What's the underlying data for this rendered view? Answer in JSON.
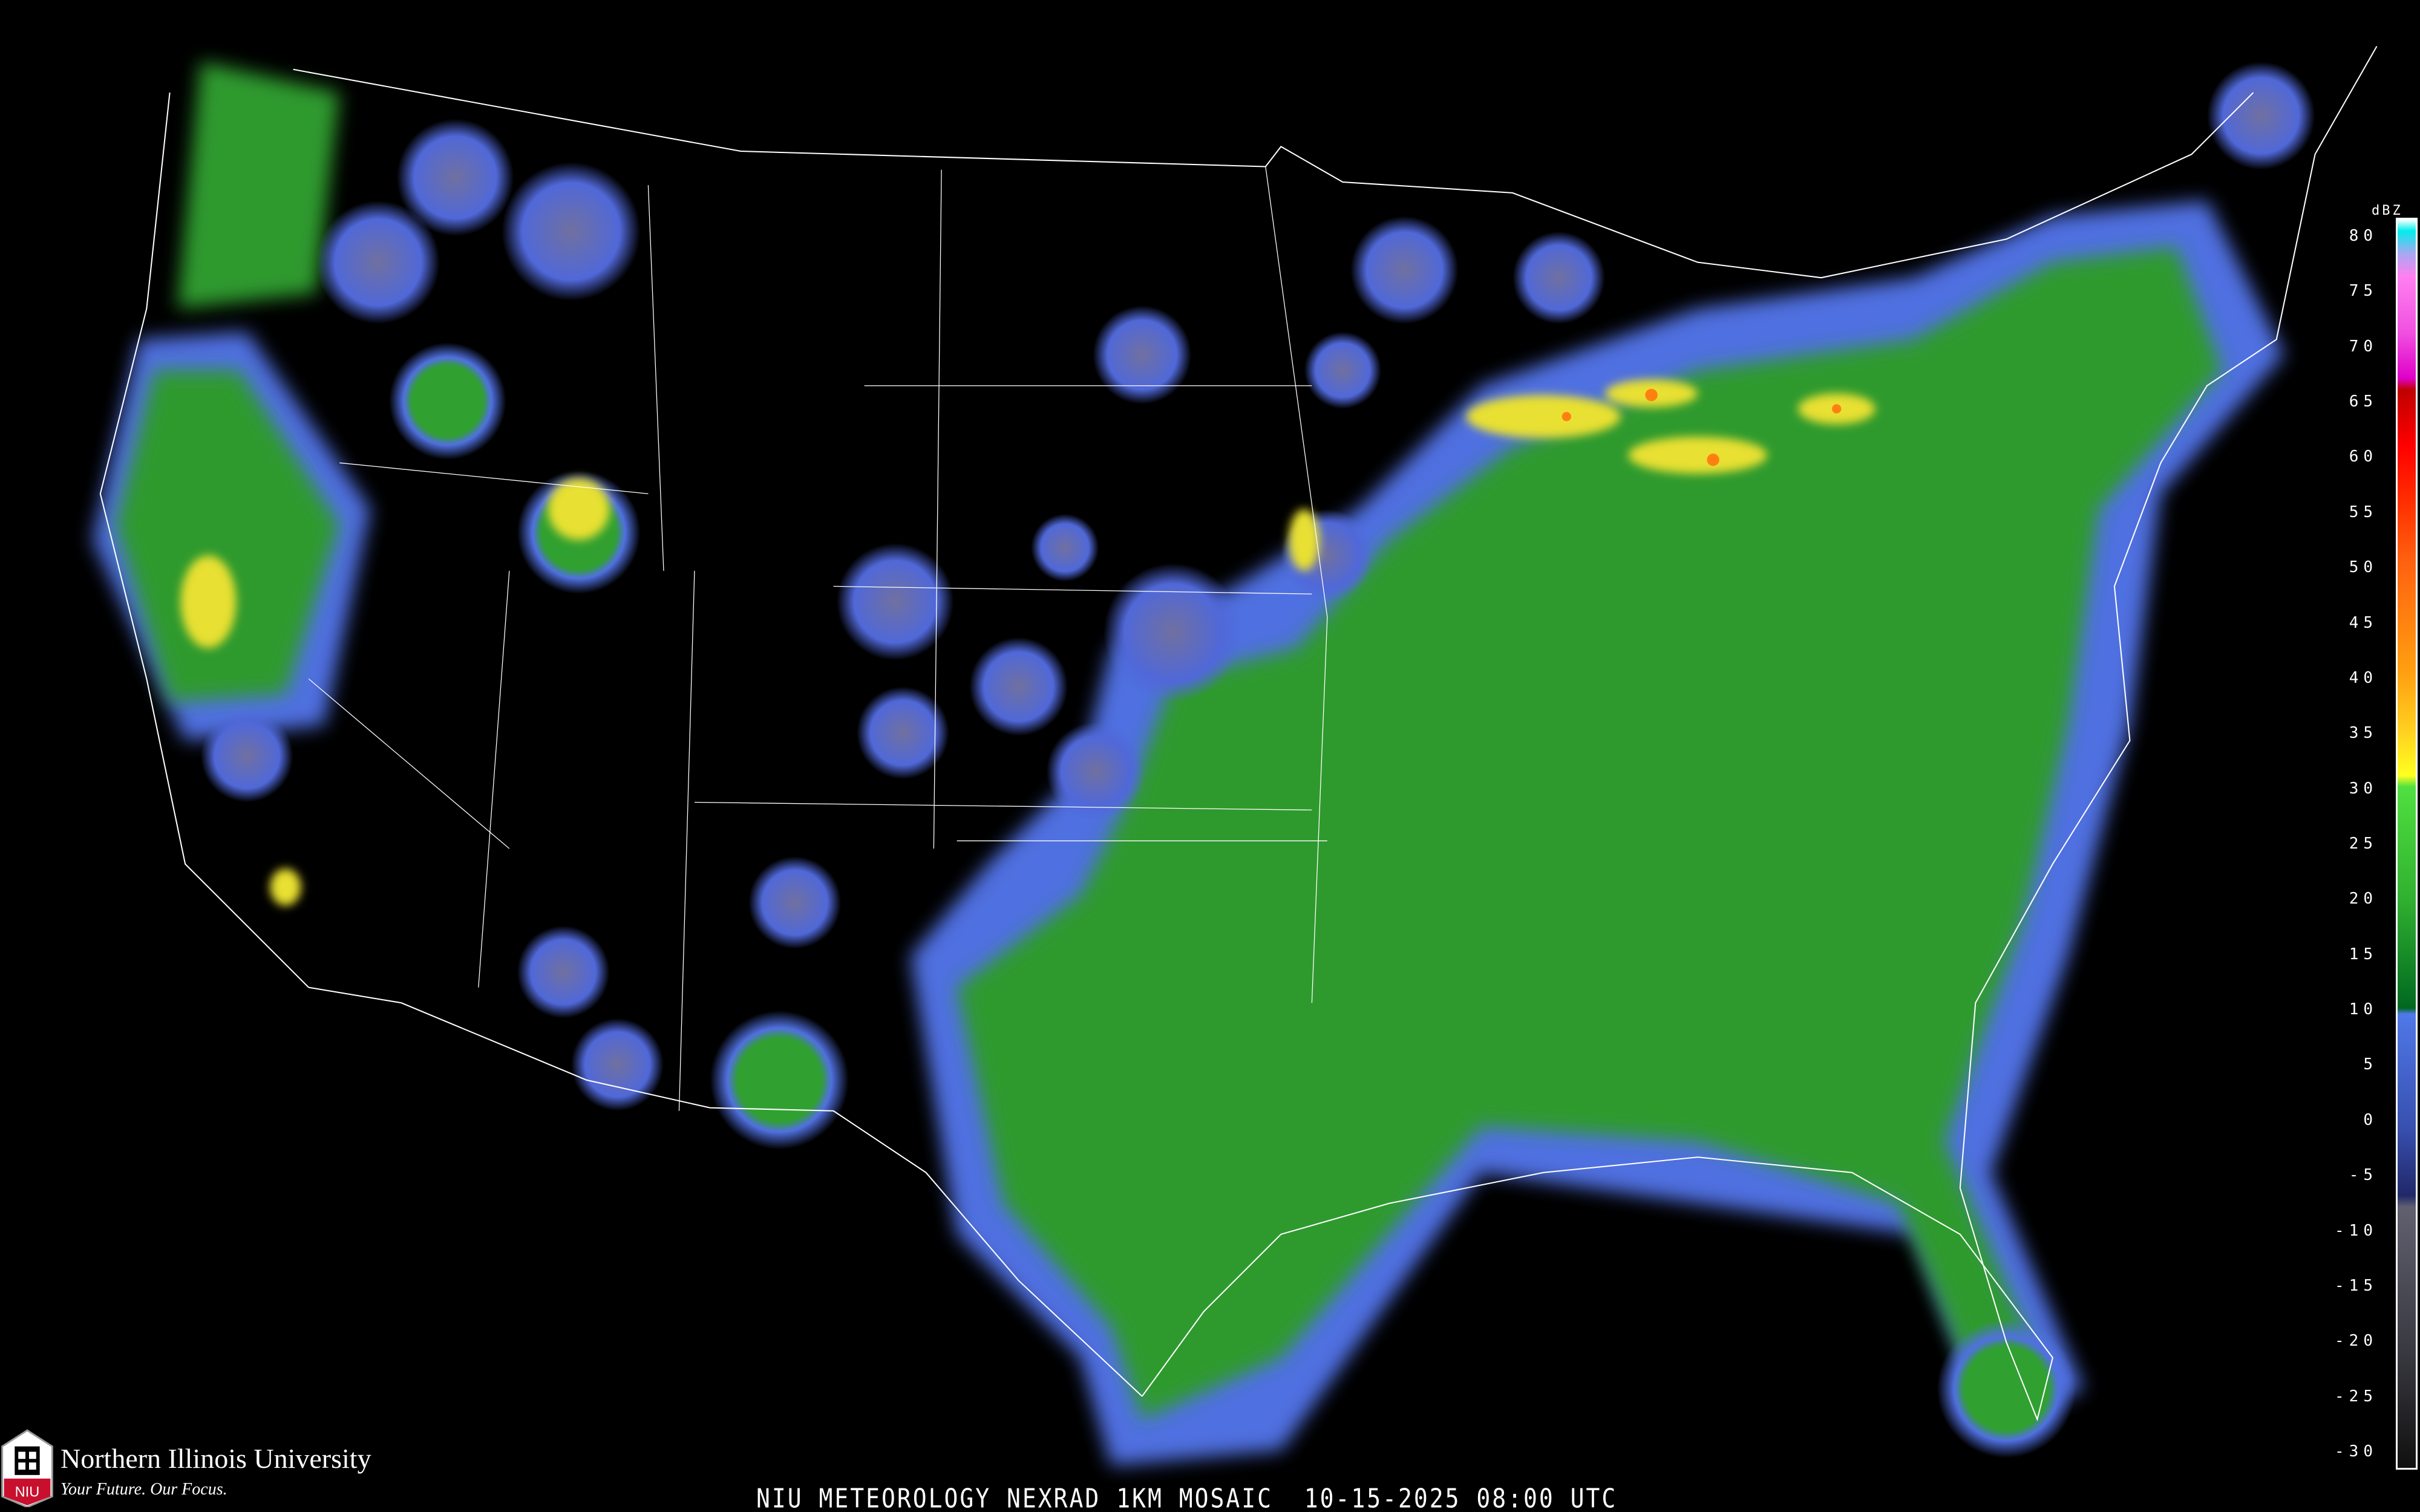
{
  "title": "NIU METEOROLOGY NEXRAD 1KM MOSAIC  10-15-2025 08:00 UTC",
  "logo": {
    "name": "Northern Illinois University",
    "tagline": "Your Future. Our Focus.",
    "mark": "NIU"
  },
  "legend": {
    "unit": "dBZ",
    "ticks": [
      "80",
      "75",
      "70",
      "65",
      "60",
      "55",
      "50",
      "45",
      "40",
      "35",
      "30",
      "25",
      "20",
      "15",
      "10",
      "5",
      "0",
      "-5",
      "-10",
      "-15",
      "-20",
      "-25",
      "-30"
    ],
    "range": [
      -30,
      80
    ],
    "color_stops": [
      {
        "dbz": 80,
        "color": "#ffffff"
      },
      {
        "dbz": 79,
        "color": "#00eeee"
      },
      {
        "dbz": 77,
        "color": "#a8a8f0"
      },
      {
        "dbz": 75,
        "color": "#ff80f0"
      },
      {
        "dbz": 70,
        "color": "#f050e0"
      },
      {
        "dbz": 66,
        "color": "#e000c8"
      },
      {
        "dbz": 65,
        "color": "#c00000"
      },
      {
        "dbz": 60,
        "color": "#ff0000"
      },
      {
        "dbz": 55,
        "color": "#ff3000"
      },
      {
        "dbz": 50,
        "color": "#ff6010"
      },
      {
        "dbz": 45,
        "color": "#ff8010"
      },
      {
        "dbz": 40,
        "color": "#ffa010"
      },
      {
        "dbz": 35,
        "color": "#ffd020"
      },
      {
        "dbz": 31,
        "color": "#ffff20"
      },
      {
        "dbz": 30,
        "color": "#50e040"
      },
      {
        "dbz": 20,
        "color": "#30b030"
      },
      {
        "dbz": 10.5,
        "color": "#006820"
      },
      {
        "dbz": 10,
        "color": "#5078e8"
      },
      {
        "dbz": 0,
        "color": "#3850b0"
      },
      {
        "dbz": -6,
        "color": "#202868"
      },
      {
        "dbz": -7,
        "color": "#606070"
      },
      {
        "dbz": -20,
        "color": "#383840"
      },
      {
        "dbz": -30,
        "color": "#101010"
      }
    ]
  },
  "colors": {
    "background": "#000000",
    "boundaries": "#ffffff",
    "counties": "#555555",
    "highways": "#7a3a20"
  }
}
